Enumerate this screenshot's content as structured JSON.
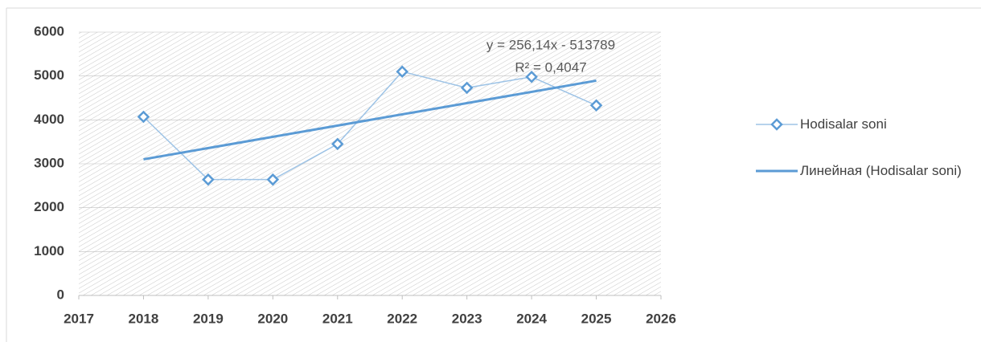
{
  "chart_data": {
    "type": "line",
    "x": [
      2018,
      2019,
      2020,
      2021,
      2022,
      2023,
      2024,
      2025
    ],
    "series": [
      {
        "name": "Hodisalar soni",
        "color": "#9dc3e6",
        "marker_color": "#5b9bd5",
        "values": [
          4070,
          2640,
          2640,
          3450,
          5100,
          4730,
          4980,
          4330
        ]
      },
      {
        "name": "Линейная (Hodisalar soni)",
        "color": "#5b9bd5",
        "x": [
          2018,
          2025
        ],
        "values": [
          3101.5,
          4894.5
        ]
      }
    ],
    "annotations": [
      "y = 256,14x - 513789",
      "R² = 0,4047"
    ],
    "xlim": [
      2017,
      2026
    ],
    "xticks": [
      2017,
      2018,
      2019,
      2020,
      2021,
      2022,
      2023,
      2024,
      2025,
      2026
    ],
    "ylim": [
      0,
      6000
    ],
    "yticks": [
      0,
      1000,
      2000,
      3000,
      4000,
      5000,
      6000
    ],
    "grid": true,
    "legend": "right"
  }
}
